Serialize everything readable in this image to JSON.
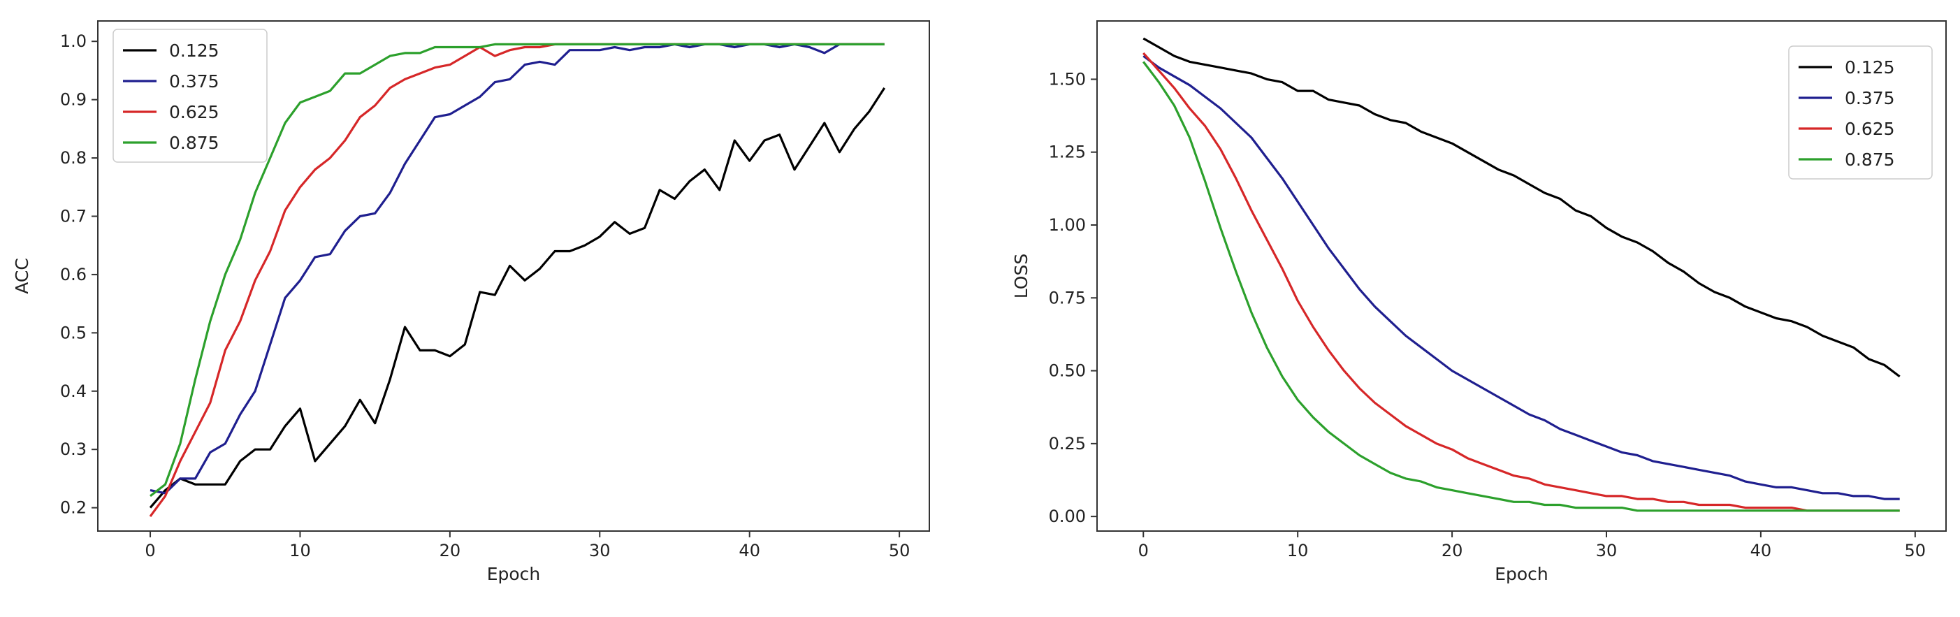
{
  "chart_data": [
    {
      "type": "line",
      "title": "",
      "xlabel": "Epoch",
      "ylabel": "ACC",
      "xlim": [
        -3.5,
        52
      ],
      "ylim": [
        0.16,
        1.035
      ],
      "xticks": [
        0,
        10,
        20,
        30,
        40,
        50
      ],
      "yticks": [
        0.2,
        0.3,
        0.4,
        0.5,
        0.6,
        0.7,
        0.8,
        0.9,
        1.0
      ],
      "ytick_labels": [
        "0.2",
        "0.3",
        "0.4",
        "0.5",
        "0.6",
        "0.7",
        "0.8",
        "0.9",
        "1.0"
      ],
      "legend_position": "top-left",
      "grid": false,
      "x": [
        0,
        1,
        2,
        3,
        4,
        5,
        6,
        7,
        8,
        9,
        10,
        11,
        12,
        13,
        14,
        15,
        16,
        17,
        18,
        19,
        20,
        21,
        22,
        23,
        24,
        25,
        26,
        27,
        28,
        29,
        30,
        31,
        32,
        33,
        34,
        35,
        36,
        37,
        38,
        39,
        40,
        41,
        42,
        43,
        44,
        45,
        46,
        47,
        48,
        49
      ],
      "series": [
        {
          "name": "0.125",
          "color": "#000000",
          "values": [
            0.2,
            0.23,
            0.25,
            0.24,
            0.24,
            0.24,
            0.28,
            0.3,
            0.3,
            0.34,
            0.37,
            0.28,
            0.31,
            0.34,
            0.385,
            0.345,
            0.42,
            0.51,
            0.47,
            0.47,
            0.46,
            0.48,
            0.57,
            0.565,
            0.615,
            0.59,
            0.61,
            0.64,
            0.64,
            0.65,
            0.665,
            0.69,
            0.67,
            0.68,
            0.745,
            0.73,
            0.76,
            0.78,
            0.745,
            0.83,
            0.795,
            0.83,
            0.84,
            0.78,
            0.82,
            0.86,
            0.81,
            0.85,
            0.88,
            0.92
          ]
        },
        {
          "name": "0.375",
          "color": "#1f1f8f",
          "values": [
            0.23,
            0.225,
            0.25,
            0.25,
            0.295,
            0.31,
            0.36,
            0.4,
            0.48,
            0.56,
            0.59,
            0.63,
            0.635,
            0.675,
            0.7,
            0.705,
            0.74,
            0.79,
            0.83,
            0.87,
            0.875,
            0.89,
            0.905,
            0.93,
            0.935,
            0.96,
            0.965,
            0.96,
            0.985,
            0.985,
            0.985,
            0.99,
            0.985,
            0.99,
            0.99,
            0.995,
            0.99,
            0.995,
            0.995,
            0.99,
            0.995,
            0.995,
            0.99,
            0.995,
            0.99,
            0.98,
            0.995,
            0.995,
            0.995,
            0.995
          ]
        },
        {
          "name": "0.625",
          "color": "#d62728",
          "values": [
            0.185,
            0.22,
            0.28,
            0.33,
            0.38,
            0.47,
            0.52,
            0.59,
            0.64,
            0.71,
            0.75,
            0.78,
            0.8,
            0.83,
            0.87,
            0.89,
            0.92,
            0.935,
            0.945,
            0.955,
            0.96,
            0.975,
            0.99,
            0.975,
            0.985,
            0.99,
            0.99,
            0.995,
            0.995,
            0.995,
            0.995,
            0.995,
            0.995,
            0.995,
            0.995,
            0.995,
            0.995,
            0.995,
            0.995,
            0.995,
            0.995,
            0.995,
            0.995,
            0.995,
            0.995,
            0.995,
            0.995,
            0.995,
            0.995,
            0.995
          ]
        },
        {
          "name": "0.875",
          "color": "#2ca02c",
          "values": [
            0.22,
            0.24,
            0.31,
            0.42,
            0.52,
            0.6,
            0.66,
            0.74,
            0.8,
            0.86,
            0.895,
            0.905,
            0.915,
            0.945,
            0.945,
            0.96,
            0.975,
            0.98,
            0.98,
            0.99,
            0.99,
            0.99,
            0.99,
            0.995,
            0.995,
            0.995,
            0.995,
            0.995,
            0.995,
            0.995,
            0.995,
            0.995,
            0.995,
            0.995,
            0.995,
            0.995,
            0.995,
            0.995,
            0.995,
            0.995,
            0.995,
            0.995,
            0.995,
            0.995,
            0.995,
            0.995,
            0.995,
            0.995,
            0.995,
            0.995
          ]
        }
      ]
    },
    {
      "type": "line",
      "title": "",
      "xlabel": "Epoch",
      "ylabel": "LOSS",
      "xlim": [
        -3,
        52
      ],
      "ylim": [
        -0.05,
        1.7
      ],
      "xticks": [
        0,
        10,
        20,
        30,
        40,
        50
      ],
      "yticks": [
        0.0,
        0.25,
        0.5,
        0.75,
        1.0,
        1.25,
        1.5
      ],
      "ytick_labels": [
        "0.00",
        "0.25",
        "0.50",
        "0.75",
        "1.00",
        "1.25",
        "1.50"
      ],
      "legend_position": "top-right",
      "grid": false,
      "x": [
        0,
        1,
        2,
        3,
        4,
        5,
        6,
        7,
        8,
        9,
        10,
        11,
        12,
        13,
        14,
        15,
        16,
        17,
        18,
        19,
        20,
        21,
        22,
        23,
        24,
        25,
        26,
        27,
        28,
        29,
        30,
        31,
        32,
        33,
        34,
        35,
        36,
        37,
        38,
        39,
        40,
        41,
        42,
        43,
        44,
        45,
        46,
        47,
        48,
        49
      ],
      "series": [
        {
          "name": "0.125",
          "color": "#000000",
          "values": [
            1.64,
            1.61,
            1.58,
            1.56,
            1.55,
            1.54,
            1.53,
            1.52,
            1.5,
            1.49,
            1.46,
            1.46,
            1.43,
            1.42,
            1.41,
            1.38,
            1.36,
            1.35,
            1.32,
            1.3,
            1.28,
            1.25,
            1.22,
            1.19,
            1.17,
            1.14,
            1.11,
            1.09,
            1.05,
            1.03,
            0.99,
            0.96,
            0.94,
            0.91,
            0.87,
            0.84,
            0.8,
            0.77,
            0.75,
            0.72,
            0.7,
            0.68,
            0.67,
            0.65,
            0.62,
            0.6,
            0.58,
            0.54,
            0.52,
            0.48
          ]
        },
        {
          "name": "0.375",
          "color": "#1f1f8f",
          "values": [
            1.58,
            1.54,
            1.51,
            1.48,
            1.44,
            1.4,
            1.35,
            1.3,
            1.23,
            1.16,
            1.08,
            1.0,
            0.92,
            0.85,
            0.78,
            0.72,
            0.67,
            0.62,
            0.58,
            0.54,
            0.5,
            0.47,
            0.44,
            0.41,
            0.38,
            0.35,
            0.33,
            0.3,
            0.28,
            0.26,
            0.24,
            0.22,
            0.21,
            0.19,
            0.18,
            0.17,
            0.16,
            0.15,
            0.14,
            0.12,
            0.11,
            0.1,
            0.1,
            0.09,
            0.08,
            0.08,
            0.07,
            0.07,
            0.06,
            0.06
          ]
        },
        {
          "name": "0.625",
          "color": "#d62728",
          "values": [
            1.59,
            1.53,
            1.47,
            1.4,
            1.34,
            1.26,
            1.16,
            1.05,
            0.95,
            0.85,
            0.74,
            0.65,
            0.57,
            0.5,
            0.44,
            0.39,
            0.35,
            0.31,
            0.28,
            0.25,
            0.23,
            0.2,
            0.18,
            0.16,
            0.14,
            0.13,
            0.11,
            0.1,
            0.09,
            0.08,
            0.07,
            0.07,
            0.06,
            0.06,
            0.05,
            0.05,
            0.04,
            0.04,
            0.04,
            0.03,
            0.03,
            0.03,
            0.03,
            0.02,
            0.02,
            0.02,
            0.02,
            0.02,
            0.02,
            0.02
          ]
        },
        {
          "name": "0.875",
          "color": "#2ca02c",
          "values": [
            1.56,
            1.49,
            1.41,
            1.3,
            1.15,
            0.99,
            0.84,
            0.7,
            0.58,
            0.48,
            0.4,
            0.34,
            0.29,
            0.25,
            0.21,
            0.18,
            0.15,
            0.13,
            0.12,
            0.1,
            0.09,
            0.08,
            0.07,
            0.06,
            0.05,
            0.05,
            0.04,
            0.04,
            0.03,
            0.03,
            0.03,
            0.03,
            0.02,
            0.02,
            0.02,
            0.02,
            0.02,
            0.02,
            0.02,
            0.02,
            0.02,
            0.02,
            0.02,
            0.02,
            0.02,
            0.02,
            0.02,
            0.02,
            0.02,
            0.02
          ]
        }
      ]
    }
  ]
}
